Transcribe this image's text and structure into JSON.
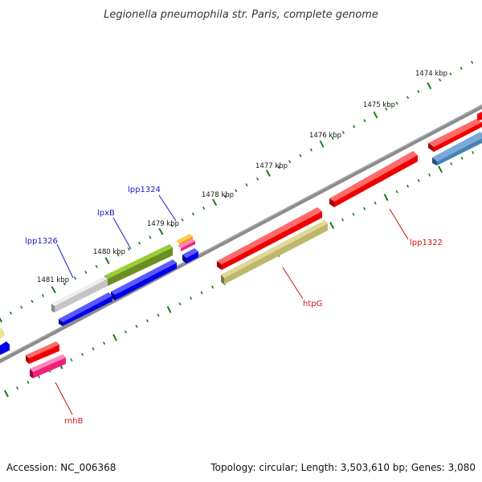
{
  "title": "Legionella pneumophila str. Paris, complete genome",
  "footer": {
    "accession": "Accession: NC_006368",
    "summary": "Topology: circular; Length: 3,503,610 bp; Genes: 3,080"
  },
  "scale_labels": [
    "1474 kbp",
    "1475 kbp",
    "1476 kbp",
    "1477 kbp",
    "1478 kbp",
    "1479 kbp",
    "1480 kbp",
    "1481 kbp"
  ],
  "gene_labels": [
    {
      "name": "lpp1324",
      "color": "#1a1acc"
    },
    {
      "name": "lpxB",
      "color": "#1a1acc"
    },
    {
      "name": "lpp1326",
      "color": "#1a1acc"
    },
    {
      "name": "lpp1322",
      "color": "#cc1111"
    },
    {
      "name": "htpG",
      "color": "#cc1111"
    },
    {
      "name": "rnhB",
      "color": "#cc1111"
    }
  ],
  "colors": {
    "backbone": "#808080",
    "tick": "#1a7a1a",
    "red": "#ee0000",
    "blue": "#0000ee",
    "olive": "#6b8e23",
    "khaki": "#bdb76b",
    "gray": "#c0c0c0",
    "orange": "#ff9900",
    "pink": "#ee2277",
    "steel": "#4682b4",
    "pale": "#eee68c"
  }
}
